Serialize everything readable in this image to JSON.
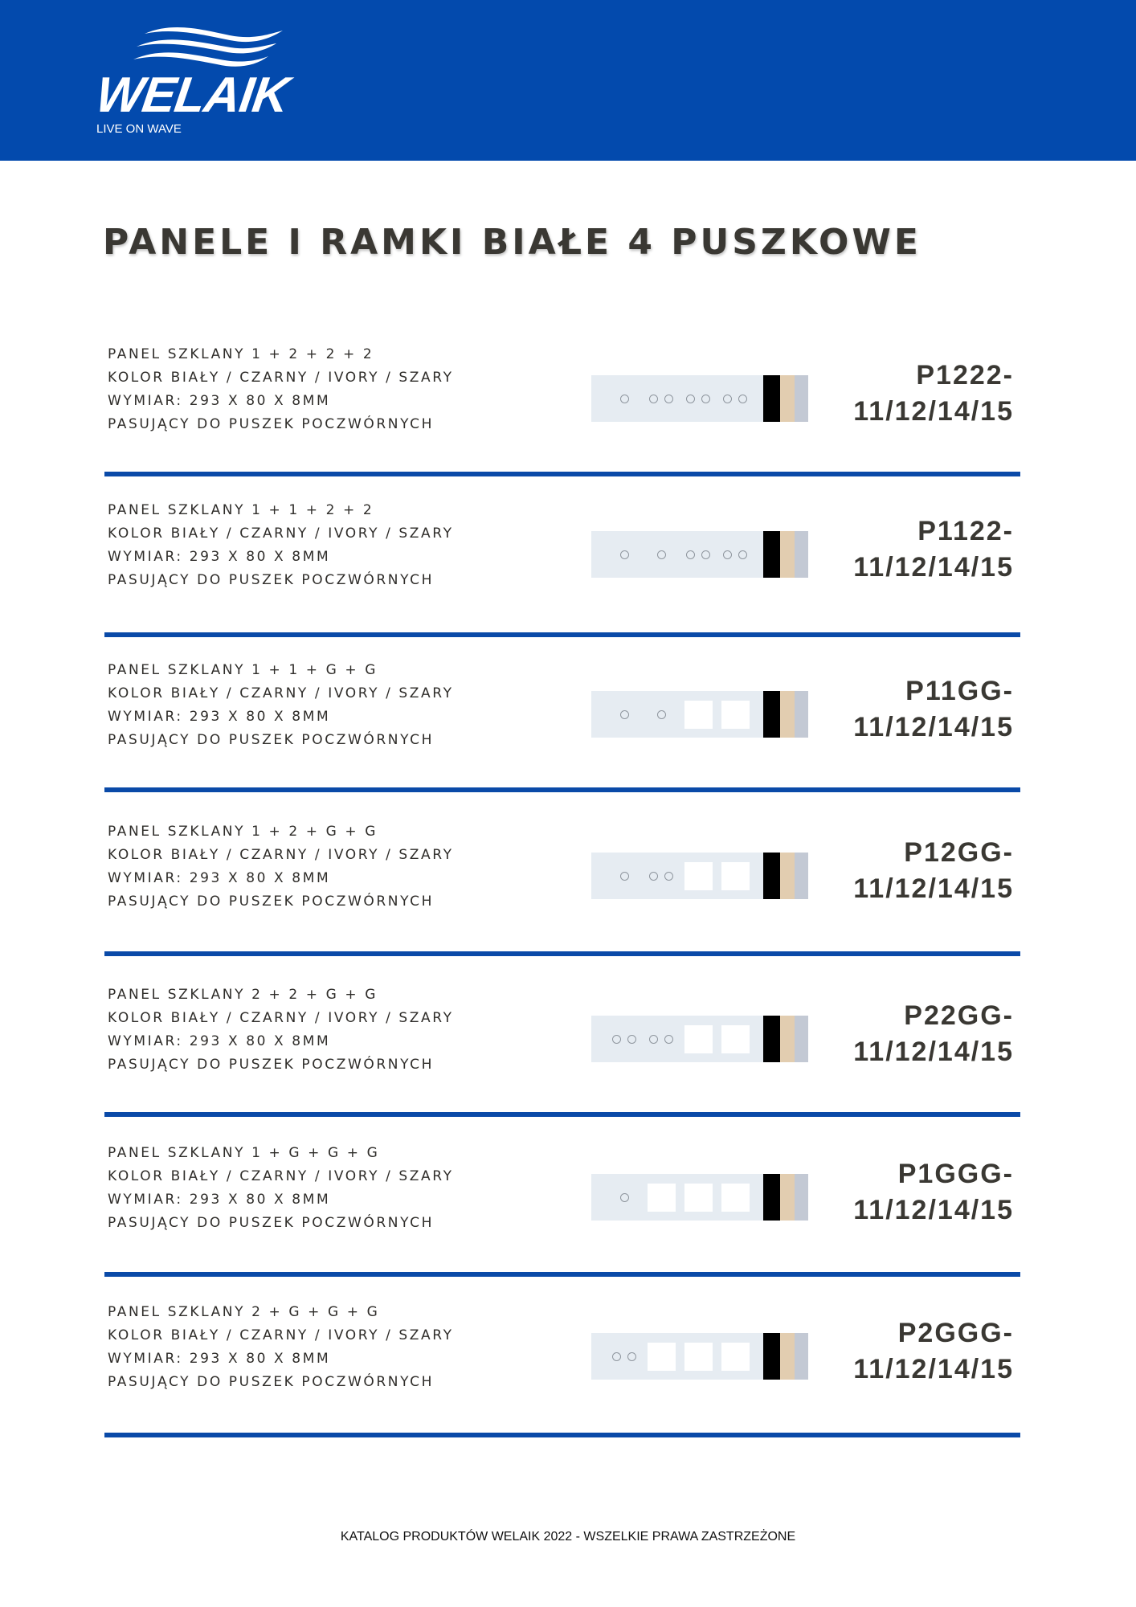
{
  "header": {
    "brand": "WELAIK",
    "tagline": "LIVE ON WAVE",
    "background": "#034aad"
  },
  "title": "PANELE I RAMKI BIAŁE 4 PUSZKOWE",
  "colors": {
    "divider": "#0a4aa8",
    "black": "#000000",
    "ivory": "#e2cdb0",
    "gray": "#c3c9d4",
    "glass": "#e6ecf2"
  },
  "products": [
    {
      "lines": [
        "PANEL SZKLANY 1 + 2 + 2 + 2",
        "KOLOR BIAŁY / CZARNY / IVORY / SZARY",
        "WYMIAR: 293 X 80 X 8MM",
        "PASUJĄCY DO PUSZEK POCZWÓRNYCH"
      ],
      "code1": "P1222-",
      "code2": "11/12/14/15",
      "layout": [
        "1",
        "2",
        "2",
        "2"
      ]
    },
    {
      "lines": [
        "PANEL SZKLANY 1 + 1 + 2 + 2",
        "KOLOR BIAŁY / CZARNY / IVORY / SZARY",
        "WYMIAR: 293 X 80 X 8MM",
        "PASUJĄCY DO PUSZEK POCZWÓRNYCH"
      ],
      "code1": "P1122-",
      "code2": "11/12/14/15",
      "layout": [
        "1",
        "1",
        "2",
        "2"
      ]
    },
    {
      "lines": [
        "PANEL SZKLANY 1 + 1 + G + G",
        "KOLOR BIAŁY / CZARNY / IVORY / SZARY",
        "WYMIAR: 293 X 80 X 8MM",
        "PASUJĄCY DO PUSZEK POCZWÓRNYCH"
      ],
      "code1": "P11GG-",
      "code2": "11/12/14/15",
      "layout": [
        "1",
        "1",
        "G",
        "G"
      ]
    },
    {
      "lines": [
        "PANEL SZKLANY 1 + 2 + G + G",
        "KOLOR BIAŁY / CZARNY / IVORY / SZARY",
        "WYMIAR: 293 X 80 X 8MM",
        "PASUJĄCY DO PUSZEK POCZWÓRNYCH"
      ],
      "code1": "P12GG-",
      "code2": "11/12/14/15",
      "layout": [
        "1",
        "2",
        "G",
        "G"
      ]
    },
    {
      "lines": [
        "PANEL SZKLANY 2 + 2 + G + G",
        "KOLOR BIAŁY / CZARNY / IVORY / SZARY",
        "WYMIAR: 293 X 80 X 8MM",
        "PASUJĄCY DO PUSZEK POCZWÓRNYCH"
      ],
      "code1": "P22GG-",
      "code2": "11/12/14/15",
      "layout": [
        "2",
        "2",
        "G",
        "G"
      ]
    },
    {
      "lines": [
        "PANEL SZKLANY 1 + G + G + G",
        "KOLOR BIAŁY / CZARNY / IVORY / SZARY",
        "WYMIAR: 293 X 80 X 8MM",
        "PASUJĄCY DO PUSZEK POCZWÓRNYCH"
      ],
      "code1": "P1GGG-",
      "code2": "11/12/14/15",
      "layout": [
        "1",
        "G",
        "G",
        "G"
      ]
    },
    {
      "lines": [
        "PANEL SZKLANY 2 + G + G + G",
        "KOLOR BIAŁY / CZARNY / IVORY / SZARY",
        "WYMIAR: 293 X 80 X 8MM",
        "PASUJĄCY DO PUSZEK POCZWÓRNYCH"
      ],
      "code1": "P2GGG-",
      "code2": "11/12/14/15",
      "layout": [
        "2",
        "G",
        "G",
        "G"
      ]
    }
  ],
  "footer": "KATALOG PRODUKTÓW WELAIK 2022 - WSZELKIE PRAWA ZASTRZEŻONE"
}
